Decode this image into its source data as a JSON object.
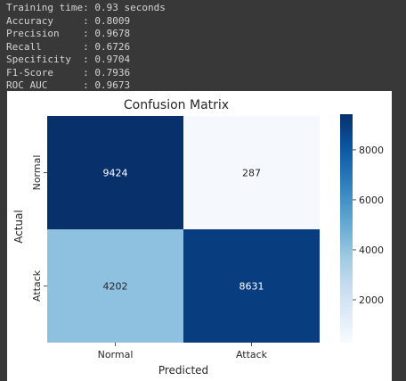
{
  "console": {
    "lines": [
      {
        "label": "Training time:",
        "value": " 0.93 seconds"
      },
      {
        "label": "Accuracy     ",
        "value": ": 0.8009"
      },
      {
        "label": "Precision    ",
        "value": ": 0.9678"
      },
      {
        "label": "Recall       ",
        "value": ": 0.6726"
      },
      {
        "label": "Specificity  ",
        "value": ": 0.9704"
      },
      {
        "label": "F1-Score     ",
        "value": ": 0.7936"
      },
      {
        "label": "ROC AUC      ",
        "value": ": 0.9673"
      }
    ]
  },
  "chart_data": {
    "type": "heatmap",
    "title": "Confusion Matrix",
    "xlabel": "Predicted",
    "ylabel": "Actual",
    "x_categories": [
      "Normal",
      "Attack"
    ],
    "y_categories": [
      "Normal",
      "Attack"
    ],
    "values": [
      [
        9424,
        287
      ],
      [
        4202,
        8631
      ]
    ],
    "colormap": "Blues",
    "colorbar": {
      "min": 287,
      "max": 9424,
      "ticks": [
        2000,
        4000,
        6000,
        8000
      ]
    },
    "cell_colors": [
      [
        "#08306b",
        "#f5f9fe"
      ],
      [
        "#8ec0df",
        "#083d7f"
      ]
    ],
    "text_colors": [
      [
        "#ffffff",
        "#262626"
      ],
      [
        "#262626",
        "#ffffff"
      ]
    ]
  }
}
